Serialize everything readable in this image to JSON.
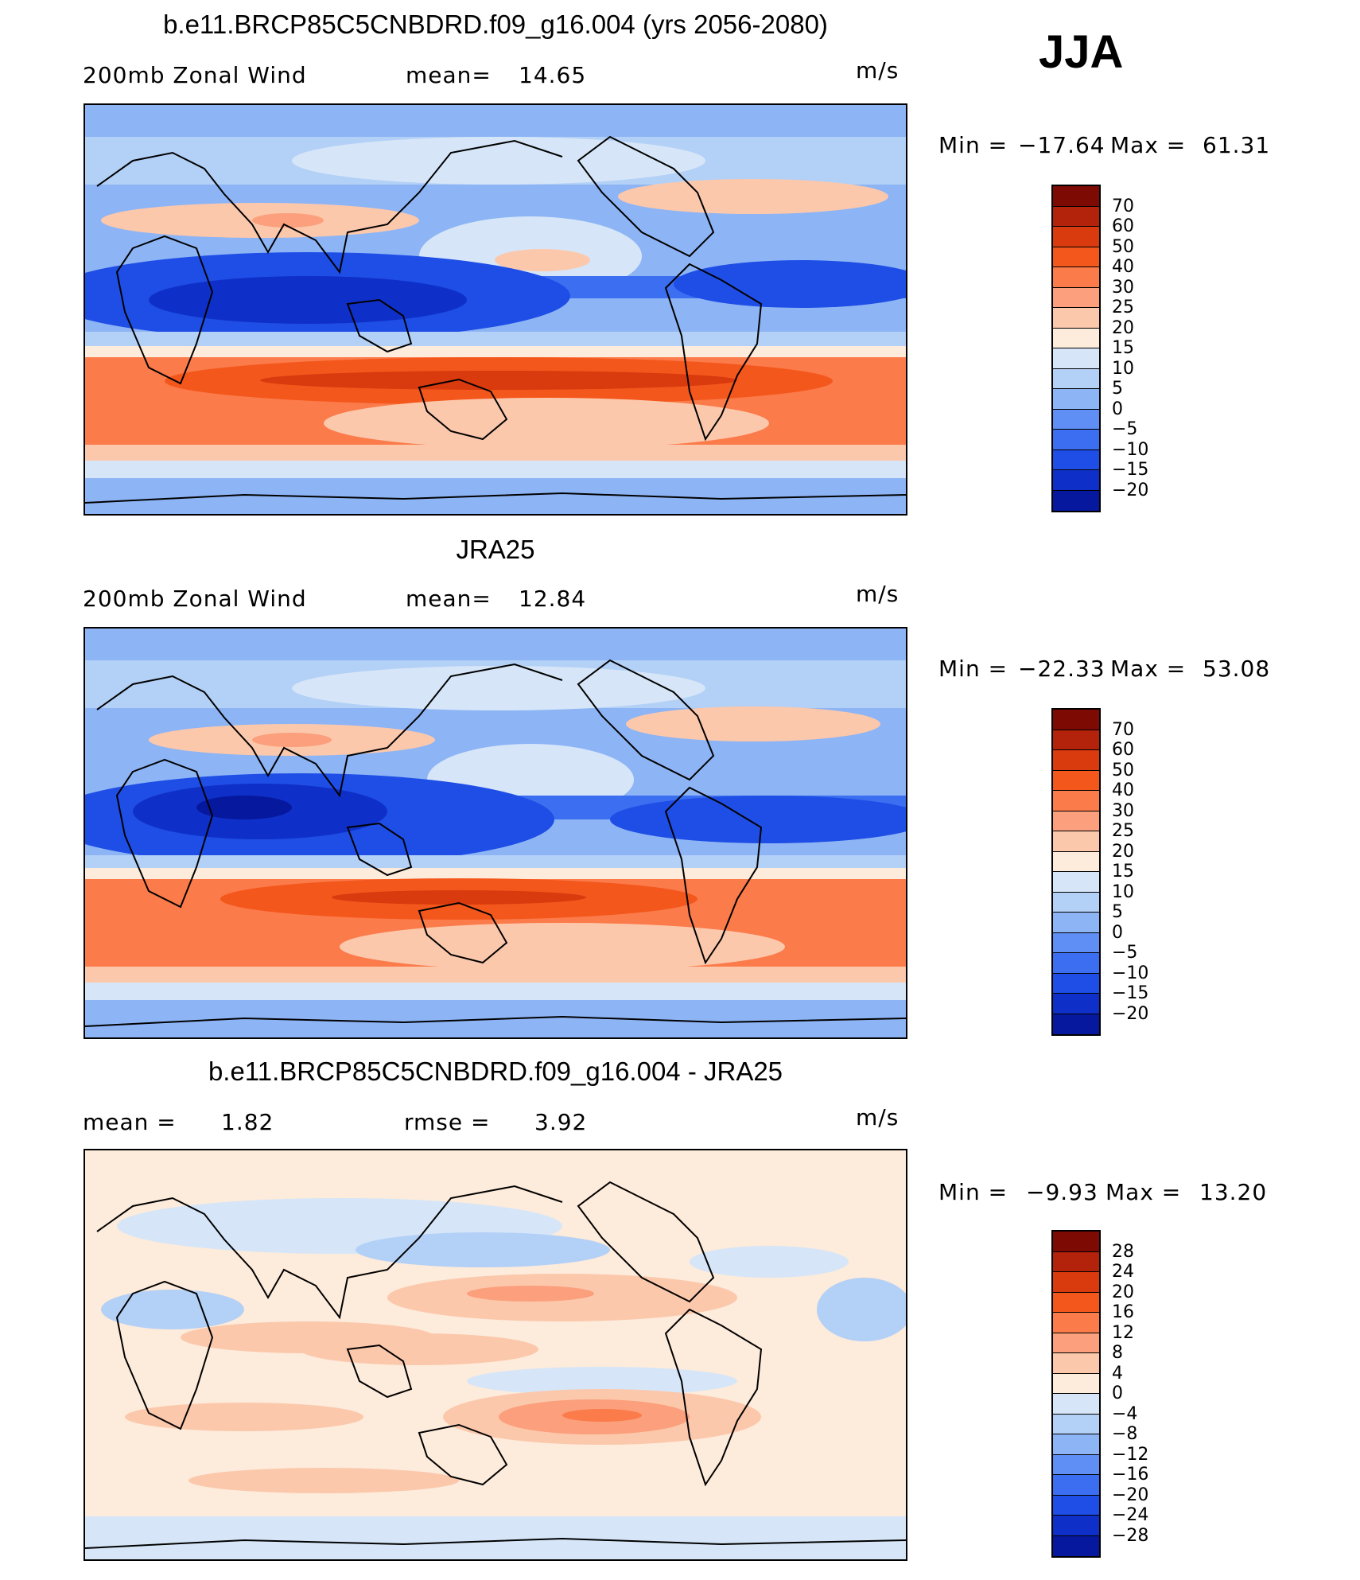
{
  "season": "JJA",
  "units": "m/s",
  "panels": [
    {
      "title": "b.e11.BRCP85C5CNBDRD.f09_g16.004 (yrs 2056-2080)",
      "left_label": "200mb  Zonal  Wind",
      "stat_label": "mean=",
      "stat_value": "14.65",
      "min_label": "Min  =",
      "min_value": "−17.64",
      "max_label": "Max  =",
      "max_value": "61.31",
      "colorbar_labels": [
        "70",
        "60",
        "50",
        "40",
        "30",
        "25",
        "20",
        "15",
        "10",
        "5",
        "0",
        "−5",
        "−10",
        "−15",
        "−20"
      ]
    },
    {
      "title": "JRA25",
      "left_label": "200mb  Zonal  Wind",
      "stat_label": "mean=",
      "stat_value": "12.84",
      "min_label": "Min  =",
      "min_value": "−22.33",
      "max_label": "Max  =",
      "max_value": "53.08",
      "colorbar_labels": [
        "70",
        "60",
        "50",
        "40",
        "30",
        "25",
        "20",
        "15",
        "10",
        "5",
        "0",
        "−5",
        "−10",
        "−15",
        "−20"
      ]
    },
    {
      "title": "b.e11.BRCP85C5CNBDRD.f09_g16.004 - JRA25",
      "left_label": "mean  =",
      "left_value": "1.82",
      "stat_label": "rmse  =",
      "stat_value": "3.92",
      "min_label": "Min  =",
      "min_value": "−9.93",
      "max_label": "Max  =",
      "max_value": "13.20",
      "colorbar_labels": [
        "28",
        "24",
        "20",
        "16",
        "12",
        "8",
        "4",
        "0",
        "−4",
        "−8",
        "−12",
        "−16",
        "−20",
        "−24",
        "−28"
      ]
    }
  ],
  "colorbar_colors": [
    "#7e0a04",
    "#b3220a",
    "#d93a0e",
    "#f4571c",
    "#fb7b4b",
    "#fb9f7c",
    "#fcc8ac",
    "#fdebdb",
    "#d6e6f8",
    "#b3d0f6",
    "#8db4f5",
    "#5f8ff5",
    "#3b6ef0",
    "#1e4ee6",
    "#0f30c8",
    "#05189e"
  ]
}
